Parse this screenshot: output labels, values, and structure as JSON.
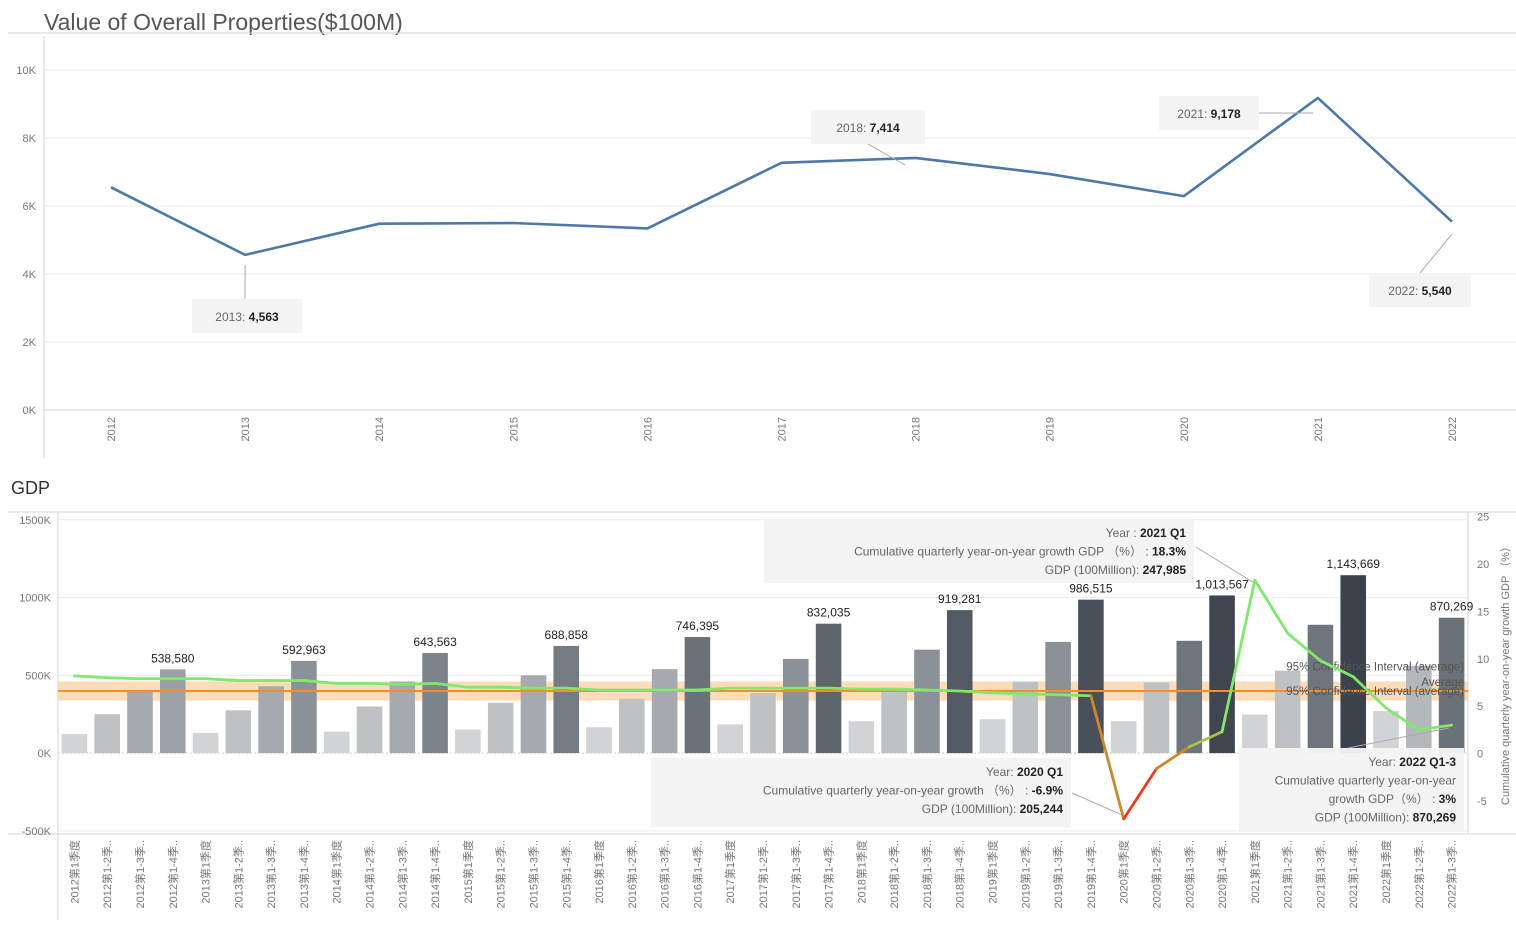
{
  "chart_data": [
    {
      "type": "line",
      "title": "Value of Overall Properties($100M)",
      "x": [
        "2012",
        "2013",
        "2014",
        "2015",
        "2016",
        "2017",
        "2018",
        "2019",
        "2020",
        "2021",
        "2022"
      ],
      "values": [
        6550,
        4563,
        5480,
        5500,
        5340,
        7270,
        7414,
        6940,
        6290,
        9178,
        5540
      ],
      "ylim": [
        0,
        11000
      ],
      "yticks": [
        "0K",
        "2K",
        "4K",
        "6K",
        "8K",
        "10K"
      ],
      "ytick_values": [
        0,
        2000,
        4000,
        6000,
        8000,
        10000
      ],
      "color": "#4e79a7",
      "grid": true,
      "annotations": [
        {
          "year": "2013",
          "text": "2013:",
          "value": "4,563"
        },
        {
          "year": "2018",
          "text": "2018:",
          "value": "7,414"
        },
        {
          "year": "2021",
          "text": "2021:",
          "value": "9,178"
        },
        {
          "year": "2022",
          "text": "2022:",
          "value": "5,540"
        }
      ]
    },
    {
      "type": "bar",
      "title": "GDP",
      "categories": [
        "2012第1季度",
        "2012第1-2季..",
        "2012第1-3季..",
        "2012第1-4季..",
        "2013第1季度",
        "2013第1-2季..",
        "2013第1-3季..",
        "2013第1-4季..",
        "2014第1季度",
        "2014第1-2季..",
        "2014第1-3季..",
        "2014第1-4季..",
        "2015第1季度",
        "2015第1-2季..",
        "2015第1-3季..",
        "2015第1-4季..",
        "2016第1季度",
        "2016第1-2季..",
        "2016第1-3季..",
        "2016第1-4季..",
        "2017第1季度",
        "2017第1-2季..",
        "2017第1-3季..",
        "2017第1-4季..",
        "2018第1季度",
        "2018第1-2季..",
        "2018第1-3季..",
        "2018第1-4季..",
        "2019第1季度",
        "2019第1-2季..",
        "2019第1-3季..",
        "2019第1-4季..",
        "2020第1季度",
        "2020第1-2季..",
        "2020第1-3季..",
        "2020第1-4季..",
        "2021第1季度",
        "2021第1-2季..",
        "2021第1-3季..",
        "2021第1-4季..",
        "2022第1季度",
        "2022第1-2季..",
        "2022第1-3季.."
      ],
      "series": [
        {
          "name": "GDP (100Million)",
          "axis": "left",
          "values": [
            122000,
            250000,
            395000,
            538580,
            130000,
            275000,
            430000,
            592963,
            138000,
            300000,
            460000,
            643563,
            152000,
            323000,
            500000,
            688858,
            166000,
            350000,
            540000,
            746395,
            185000,
            385000,
            605000,
            832035,
            205000,
            420000,
            665000,
            919281,
            218000,
            460000,
            715000,
            986515,
            205244,
            455000,
            722000,
            1013567,
            247985,
            530000,
            825000,
            1143669,
            270000,
            562000,
            870269
          ]
        },
        {
          "name": "Cumulative quarterly year-on-year growth GDP（%）",
          "type": "line",
          "axis": "right",
          "values": [
            8.2,
            8.0,
            7.9,
            7.9,
            7.9,
            7.7,
            7.7,
            7.7,
            7.4,
            7.4,
            7.3,
            7.4,
            7.0,
            7.0,
            6.9,
            6.9,
            6.7,
            6.7,
            6.7,
            6.7,
            6.9,
            6.9,
            6.9,
            6.9,
            6.8,
            6.8,
            6.7,
            6.6,
            6.4,
            6.3,
            6.2,
            6.1,
            -6.9,
            -1.6,
            0.7,
            2.3,
            18.3,
            12.7,
            9.8,
            8.1,
            4.8,
            2.5,
            3.0
          ]
        }
      ],
      "bar_labels": [
        "538,580",
        "592,963",
        "643,563",
        "688,858",
        "746,395",
        "832,035",
        "919,281",
        "986,515",
        "1,013,567",
        "1,143,669",
        "870,269"
      ],
      "yticks_left": [
        "-500K",
        "0K",
        "500K",
        "1000K",
        "1500K"
      ],
      "ytick_values_left": [
        -500000,
        0,
        500000,
        1000000,
        1500000
      ],
      "yticks_right": [
        "-5",
        "0",
        "5",
        "10",
        "15",
        "20",
        "25"
      ],
      "ytick_values_right": [
        -5,
        0,
        5,
        10,
        15,
        20,
        25
      ],
      "ylim_left": [
        -520000,
        1550000
      ],
      "ylim_right": [
        -8.5,
        25.5
      ],
      "ylabel_right": "Cumulative quarterly year-on-year growth GDP （%）",
      "reference_line": {
        "label": "Average",
        "value": 6.6,
        "color": "#f28e2b"
      },
      "confidence_band": {
        "label": "95% Confidence Interval (average)",
        "low": 5.6,
        "high": 7.6,
        "color": "#fcd3a8"
      },
      "grid": true,
      "tooltips": [
        {
          "lines": [
            {
              "label": "Year :",
              "value": "2021 Q1"
            },
            {
              "label": "Cumulative quarterly year-on-year growth GDP （%） :",
              "value": "18.3%"
            },
            {
              "label": "GDP (100Million):",
              "value": "247,985"
            }
          ]
        },
        {
          "lines": [
            {
              "label": "Year:",
              "value": "2020 Q1"
            },
            {
              "label": "Cumulative quarterly year-on-year growth （%） :",
              "value": "-6.9%"
            },
            {
              "label": "GDP (100Million):",
              "value": "205,244"
            }
          ]
        },
        {
          "lines": [
            {
              "label": "Year:",
              "value": "2022 Q1-3"
            },
            {
              "label": "Cumulative quarterly year-on-year",
              "value": ""
            },
            {
              "label": "growth GDP（%） :",
              "value": "3%"
            },
            {
              "label": "GDP (100Million):",
              "value": "870,269"
            }
          ]
        }
      ]
    }
  ]
}
